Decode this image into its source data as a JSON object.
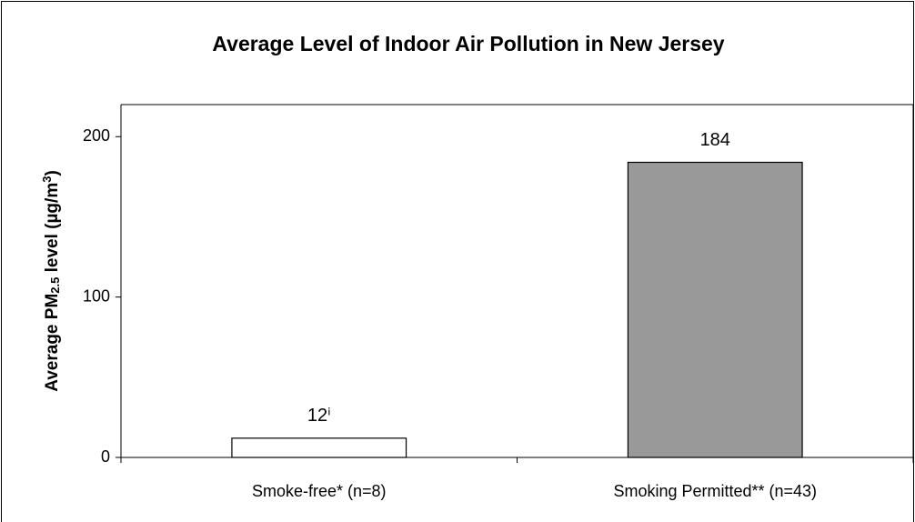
{
  "chart_data": {
    "type": "bar",
    "title": "Average Level of Indoor Air Pollution in New Jersey",
    "ylabel_parts": [
      {
        "text": "Average PM"
      },
      {
        "sub": "2.5"
      },
      {
        "text": " level (µg/m"
      },
      {
        "sup": "3"
      },
      {
        "text": ")"
      }
    ],
    "categories": [
      "Smoke-free* (n=8)",
      "Smoking Permitted** (n=43)"
    ],
    "values": [
      12,
      184
    ],
    "value_labels": [
      "12ⁱ",
      "184"
    ],
    "colors": [
      "#ffffff",
      "#999999"
    ],
    "ylim": [
      0,
      220
    ],
    "yticks": [
      0,
      100,
      200
    ],
    "grid": false
  }
}
